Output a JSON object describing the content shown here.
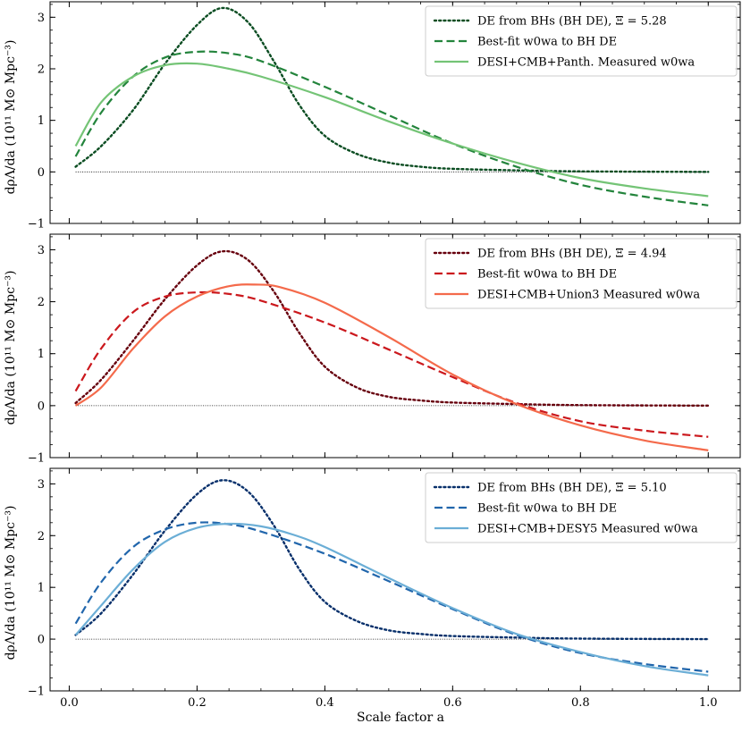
{
  "figure": {
    "xlabel": "Scale factor a",
    "ylabel": "dρΛ/da  (10¹¹ M⊙ Mpc⁻³)"
  },
  "chart_data": [
    {
      "type": "line",
      "xlim": [
        -0.03,
        1.05
      ],
      "ylim": [
        -1,
        3.3
      ],
      "x_ticks": [
        0.0,
        0.2,
        0.4,
        0.6,
        0.8,
        1.0
      ],
      "x_tick_labels": [
        "0.0",
        "0.2",
        "0.4",
        "0.6",
        "0.8",
        "1.0"
      ],
      "y_ticks": [
        -1,
        0,
        1,
        2,
        3
      ],
      "y_tick_labels": [
        "−1",
        "0",
        "1",
        "2",
        "3"
      ],
      "grid": false,
      "legend_position": "top-right",
      "reference_line": {
        "y": 0,
        "style": "dotted"
      },
      "series": [
        {
          "name": "DE from BHs (BH DE), Ξ = 5.28",
          "style": "dotted",
          "color": "#0b4d22",
          "x": [
            0.01,
            0.05,
            0.1,
            0.15,
            0.2,
            0.24,
            0.28,
            0.32,
            0.36,
            0.4,
            0.45,
            0.5,
            0.55,
            0.6,
            0.7,
            0.8,
            1.0
          ],
          "y": [
            0.1,
            0.5,
            1.2,
            2.1,
            2.85,
            3.18,
            2.9,
            2.15,
            1.3,
            0.7,
            0.35,
            0.18,
            0.1,
            0.06,
            0.03,
            0.01,
            0.0
          ]
        },
        {
          "name": "Best-fit w0wa to BH DE",
          "style": "dashed",
          "color": "#23843c",
          "x": [
            0.01,
            0.05,
            0.1,
            0.15,
            0.2,
            0.25,
            0.3,
            0.4,
            0.5,
            0.6,
            0.7,
            0.8,
            0.9,
            1.0
          ],
          "y": [
            0.3,
            1.15,
            1.85,
            2.22,
            2.33,
            2.3,
            2.15,
            1.65,
            1.1,
            0.55,
            0.1,
            -0.25,
            -0.48,
            -0.65
          ]
        },
        {
          "name": "DESI+CMB+Panth. Measured w0wa",
          "style": "solid",
          "color": "#74c476",
          "x": [
            0.01,
            0.05,
            0.1,
            0.15,
            0.2,
            0.25,
            0.3,
            0.4,
            0.5,
            0.6,
            0.7,
            0.8,
            0.9,
            1.0
          ],
          "y": [
            0.5,
            1.35,
            1.85,
            2.07,
            2.1,
            2.0,
            1.85,
            1.45,
            0.98,
            0.55,
            0.18,
            -0.12,
            -0.32,
            -0.47
          ]
        }
      ]
    },
    {
      "type": "line",
      "xlim": [
        -0.03,
        1.05
      ],
      "ylim": [
        -1,
        3.3
      ],
      "x_ticks": [
        0.0,
        0.2,
        0.4,
        0.6,
        0.8,
        1.0
      ],
      "x_tick_labels": [
        "0.0",
        "0.2",
        "0.4",
        "0.6",
        "0.8",
        "1.0"
      ],
      "y_ticks": [
        -1,
        0,
        1,
        2,
        3
      ],
      "y_tick_labels": [
        "−1",
        "0",
        "1",
        "2",
        "3"
      ],
      "grid": false,
      "legend_position": "top-right",
      "reference_line": {
        "y": 0,
        "style": "dotted"
      },
      "series": [
        {
          "name": "DE from BHs (BH DE), Ξ = 4.94",
          "style": "dotted",
          "color": "#67000d",
          "x": [
            0.01,
            0.05,
            0.1,
            0.15,
            0.2,
            0.24,
            0.28,
            0.32,
            0.36,
            0.4,
            0.45,
            0.5,
            0.55,
            0.6,
            0.7,
            0.8,
            1.0
          ],
          "y": [
            0.05,
            0.5,
            1.25,
            2.05,
            2.7,
            2.97,
            2.8,
            2.2,
            1.4,
            0.75,
            0.35,
            0.17,
            0.1,
            0.06,
            0.03,
            0.01,
            0.0
          ]
        },
        {
          "name": "Best-fit w0wa to BH DE",
          "style": "dashed",
          "color": "#cb181d",
          "x": [
            0.01,
            0.05,
            0.1,
            0.15,
            0.2,
            0.25,
            0.3,
            0.4,
            0.5,
            0.6,
            0.7,
            0.8,
            0.9,
            1.0
          ],
          "y": [
            0.28,
            1.1,
            1.8,
            2.1,
            2.18,
            2.15,
            2.02,
            1.6,
            1.08,
            0.55,
            0.05,
            -0.3,
            -0.48,
            -0.6
          ]
        },
        {
          "name": "DESI+CMB+Union3 Measured w0wa",
          "style": "solid",
          "color": "#f46a4b",
          "x": [
            0.01,
            0.05,
            0.1,
            0.15,
            0.2,
            0.25,
            0.29,
            0.33,
            0.4,
            0.5,
            0.6,
            0.7,
            0.8,
            0.9,
            1.0
          ],
          "y": [
            0.0,
            0.35,
            1.1,
            1.72,
            2.1,
            2.3,
            2.33,
            2.28,
            1.98,
            1.32,
            0.6,
            0.03,
            -0.38,
            -0.67,
            -0.86
          ]
        }
      ]
    },
    {
      "type": "line",
      "xlim": [
        -0.03,
        1.05
      ],
      "ylim": [
        -1,
        3.3
      ],
      "x_ticks": [
        0.0,
        0.2,
        0.4,
        0.6,
        0.8,
        1.0
      ],
      "x_tick_labels": [
        "0.0",
        "0.2",
        "0.4",
        "0.6",
        "0.8",
        "1.0"
      ],
      "y_ticks": [
        -1,
        0,
        1,
        2,
        3
      ],
      "y_tick_labels": [
        "−1",
        "0",
        "1",
        "2",
        "3"
      ],
      "grid": false,
      "legend_position": "top-right",
      "reference_line": {
        "y": 0,
        "style": "dotted"
      },
      "series": [
        {
          "name": "DE from BHs (BH DE), Ξ = 5.10",
          "style": "dotted",
          "color": "#08306b",
          "x": [
            0.01,
            0.05,
            0.1,
            0.15,
            0.2,
            0.24,
            0.28,
            0.32,
            0.36,
            0.4,
            0.45,
            0.5,
            0.55,
            0.6,
            0.7,
            0.8,
            1.0
          ],
          "y": [
            0.08,
            0.5,
            1.25,
            2.1,
            2.8,
            3.07,
            2.85,
            2.2,
            1.35,
            0.72,
            0.35,
            0.17,
            0.1,
            0.06,
            0.03,
            0.01,
            0.0
          ]
        },
        {
          "name": "Best-fit w0wa to BH DE",
          "style": "dashed",
          "color": "#2166ac",
          "x": [
            0.01,
            0.05,
            0.1,
            0.15,
            0.2,
            0.25,
            0.3,
            0.4,
            0.5,
            0.6,
            0.7,
            0.8,
            0.9,
            1.0
          ],
          "y": [
            0.3,
            1.1,
            1.78,
            2.12,
            2.25,
            2.22,
            2.08,
            1.65,
            1.12,
            0.58,
            0.08,
            -0.27,
            -0.48,
            -0.63
          ]
        },
        {
          "name": "DESI+CMB+DESY5 Measured w0wa",
          "style": "solid",
          "color": "#6baed6",
          "x": [
            0.01,
            0.05,
            0.1,
            0.15,
            0.2,
            0.25,
            0.3,
            0.35,
            0.4,
            0.5,
            0.6,
            0.7,
            0.8,
            0.9,
            1.0
          ],
          "y": [
            0.08,
            0.65,
            1.35,
            1.88,
            2.15,
            2.23,
            2.18,
            2.02,
            1.78,
            1.18,
            0.6,
            0.1,
            -0.25,
            -0.52,
            -0.7
          ]
        }
      ]
    }
  ]
}
